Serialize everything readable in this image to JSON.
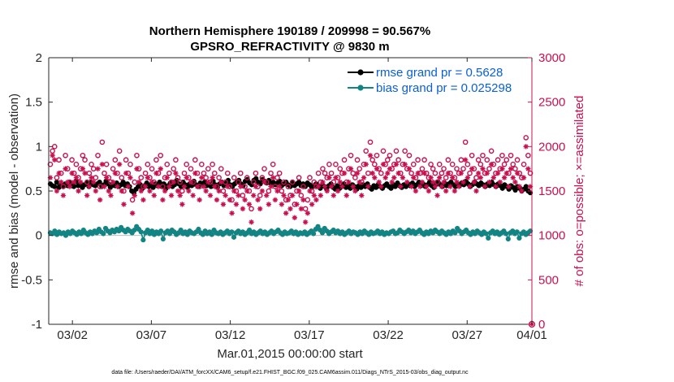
{
  "chart_data": {
    "type": "line",
    "title_line1": "Northern Hemisphere 190189 / 209998 = 90.567%",
    "title_line2": "GPSRO_REFRACTIVITY @ 9830 m",
    "xlabel": "Mar.01,2015 00:00:00 start",
    "ylabel_left": "rmse and bias (model - observation)",
    "ylabel_right": "# of obs: o=possible; ×=assimilated",
    "xlim_days": [
      0.5,
      31.1
    ],
    "ylim_left": [
      -1,
      2
    ],
    "ylim_right": [
      0,
      3000
    ],
    "x_ticks": [
      {
        "day": 2,
        "label": "03/02"
      },
      {
        "day": 7,
        "label": "03/07"
      },
      {
        "day": 12,
        "label": "03/12"
      },
      {
        "day": 17,
        "label": "03/17"
      },
      {
        "day": 22,
        "label": "03/22"
      },
      {
        "day": 27,
        "label": "03/27"
      },
      {
        "day": 32,
        "label": "04/01"
      }
    ],
    "y_ticks_left": [
      "-1",
      "-0.5",
      "0",
      "0.5",
      "1",
      "1.5",
      "2"
    ],
    "y_ticks_right": [
      "0",
      "500",
      "1000",
      "1500",
      "2000",
      "2500",
      "3000"
    ],
    "legend": [
      {
        "name": "rmse grand pr = 0.5628",
        "color": "#000000"
      },
      {
        "name": "bias grand pr = 0.025298",
        "color": "#138484"
      }
    ],
    "series": [
      {
        "name": "rmse",
        "axis": "left",
        "color": "#000000",
        "values": [
          0.58,
          0.56,
          0.55,
          0.6,
          0.54,
          0.57,
          0.55,
          0.58,
          0.56,
          0.6,
          0.57,
          0.55,
          0.61,
          0.56,
          0.58,
          0.54,
          0.57,
          0.59,
          0.55,
          0.6,
          0.57,
          0.56,
          0.58,
          0.6,
          0.55,
          0.57,
          0.61,
          0.58,
          0.54,
          0.57,
          0.56,
          0.59,
          0.55,
          0.57,
          0.6,
          0.56,
          0.58,
          0.55,
          0.5,
          0.48,
          0.52,
          0.55,
          0.57,
          0.53,
          0.56,
          0.59,
          0.55,
          0.57,
          0.54,
          0.58,
          0.56,
          0.6,
          0.55,
          0.58,
          0.53,
          0.56,
          0.59,
          0.55,
          0.57,
          0.62,
          0.58,
          0.55,
          0.6,
          0.57,
          0.54,
          0.58,
          0.56,
          0.61,
          0.57,
          0.55,
          0.59,
          0.57,
          0.6,
          0.56,
          0.58,
          0.55,
          0.61,
          0.57,
          0.54,
          0.58,
          0.6,
          0.56,
          0.59,
          0.62,
          0.57,
          0.55,
          0.58,
          0.6,
          0.62,
          0.58,
          0.56,
          0.61,
          0.63,
          0.59,
          0.57,
          0.62,
          0.64,
          0.6,
          0.58,
          0.63,
          0.61,
          0.59,
          0.62,
          0.58,
          0.6,
          0.57,
          0.59,
          0.61,
          0.56,
          0.58,
          0.6,
          0.57,
          0.55,
          0.59,
          0.56,
          0.58,
          0.6,
          0.56,
          0.58,
          0.55,
          0.59,
          0.57,
          0.54,
          0.56,
          0.58,
          0.55,
          0.53,
          0.57,
          0.55,
          0.52,
          0.56,
          0.58,
          0.54,
          0.52,
          0.56,
          0.53,
          0.55,
          0.58,
          0.54,
          0.56,
          0.53,
          0.57,
          0.55,
          0.52,
          0.56,
          0.54,
          0.57,
          0.55,
          0.58,
          0.54,
          0.52,
          0.56,
          0.54,
          0.57,
          0.55,
          0.53,
          0.56,
          0.58,
          0.55,
          0.53,
          0.57,
          0.55,
          0.59,
          0.56,
          0.54,
          0.57,
          0.55,
          0.58,
          0.56,
          0.59,
          0.55,
          0.57,
          0.6,
          0.56,
          0.58,
          0.55,
          0.57,
          0.6,
          0.56,
          0.54,
          0.58,
          0.6,
          0.57,
          0.55,
          0.59,
          0.56,
          0.58,
          0.6,
          0.57,
          0.55,
          0.58,
          0.56,
          0.59,
          0.57,
          0.61,
          0.58,
          0.55,
          0.57,
          0.6,
          0.58,
          0.56,
          0.59,
          0.57,
          0.55,
          0.58,
          0.56,
          0.6,
          0.57,
          0.55,
          0.58,
          0.56,
          0.53,
          0.57,
          0.55,
          0.52,
          0.56,
          0.54,
          0.51,
          0.55,
          0.53,
          0.5,
          0.52,
          0.55,
          0.5,
          0.48
        ]
      },
      {
        "name": "bias",
        "axis": "left",
        "color": "#138484",
        "values": [
          0.03,
          0.02,
          0.05,
          0.01,
          0.04,
          0.02,
          0.03,
          0.0,
          0.04,
          0.02,
          0.05,
          0.03,
          0.01,
          0.04,
          0.02,
          0.06,
          0.03,
          0.01,
          0.04,
          0.02,
          0.05,
          0.03,
          0.07,
          0.04,
          0.02,
          0.08,
          0.05,
          0.03,
          0.06,
          0.04,
          0.07,
          0.05,
          0.09,
          0.06,
          0.04,
          0.07,
          0.05,
          0.03,
          0.06,
          0.1,
          0.07,
          0.04,
          -0.05,
          0.03,
          0.06,
          0.02,
          0.05,
          0.01,
          0.04,
          0.02,
          0.05,
          -0.04,
          0.03,
          0.05,
          0.02,
          0.06,
          0.04,
          0.01,
          0.03,
          0.06,
          0.02,
          0.04,
          0.01,
          0.05,
          0.03,
          0.02,
          0.04,
          0.07,
          0.03,
          0.01,
          0.05,
          0.02,
          0.04,
          0.01,
          0.06,
          0.03,
          0.02,
          0.04,
          0.01,
          0.03,
          0.05,
          0.02,
          0.04,
          -0.02,
          0.03,
          0.05,
          0.02,
          0.04,
          0.01,
          0.03,
          0.06,
          0.02,
          0.04,
          0.01,
          0.03,
          0.05,
          0.02,
          0.04,
          0.01,
          0.03,
          0.05,
          0.02,
          0.04,
          0.06,
          0.03,
          0.01,
          0.04,
          0.02,
          0.03,
          0.05,
          0.02,
          0.04,
          0.01,
          0.03,
          0.02,
          0.04,
          0.01,
          0.03,
          0.05,
          0.02,
          0.07,
          0.1,
          0.06,
          0.03,
          0.08,
          0.05,
          0.02,
          0.04,
          0.06,
          0.03,
          0.05,
          0.02,
          0.04,
          0.01,
          0.03,
          0.05,
          0.02,
          0.04,
          0.03,
          0.01,
          0.04,
          0.02,
          0.05,
          0.03,
          0.01,
          0.04,
          0.02,
          0.03,
          0.05,
          0.02,
          0.04,
          0.01,
          0.03,
          0.02,
          0.04,
          0.05,
          0.02,
          0.03,
          0.06,
          0.04,
          0.02,
          0.04,
          0.06,
          0.03,
          0.05,
          0.02,
          0.04,
          0.06,
          0.03,
          0.01,
          0.04,
          0.02,
          0.05,
          0.03,
          0.06,
          0.04,
          0.02,
          0.05,
          0.03,
          0.01,
          0.04,
          0.02,
          0.05,
          0.03,
          0.08,
          0.05,
          0.02,
          0.04,
          0.06,
          0.03,
          0.01,
          0.04,
          0.02,
          0.05,
          0.03,
          0.01,
          0.04,
          0.02,
          -0.03,
          0.03,
          0.05,
          0.02,
          0.04,
          0.01,
          0.03,
          0.05,
          0.02,
          -0.04,
          0.03,
          0.05,
          0.02,
          0.04,
          -0.03,
          0.02,
          0.04,
          0.01,
          0.03,
          0.05
        ]
      },
      {
        "name": "possible",
        "axis": "right",
        "color": "#c8104f",
        "marker": "o",
        "values": [
          1800,
          1950,
          2000,
          1650,
          1850,
          1700,
          1550,
          1900,
          1750,
          1600,
          1850,
          1700,
          1800,
          1650,
          1750,
          1900,
          1850,
          1600,
          1700,
          1800,
          1750,
          1650,
          1900,
          1550,
          2050,
          1700,
          1800,
          1650,
          1600,
          1750,
          1850,
          1700,
          1950,
          1650,
          1500,
          1850,
          1700,
          1800,
          1400,
          1600,
          1900,
          1750,
          1650,
          1550,
          1700,
          1800,
          1650,
          1750,
          1600,
          1850,
          1700,
          1900,
          1550,
          1650,
          1800,
          1700,
          1600,
          1750,
          1850,
          1650,
          1600,
          1500,
          1700,
          1800,
          1650,
          1750,
          1600,
          1850,
          1700,
          1550,
          1800,
          1700,
          1650,
          1750,
          1600,
          1800,
          1700,
          1550,
          1650,
          1750,
          1500,
          1600,
          1700,
          1550,
          1400,
          1650,
          1500,
          1600,
          1700,
          1450,
          1550,
          1650,
          1500,
          1300,
          1600,
          1700,
          1550,
          1450,
          1650,
          1750,
          1600,
          1500,
          1700,
          1800,
          1550,
          1650,
          1700,
          1500,
          1600,
          1400,
          1550,
          1450,
          1600,
          1350,
          1500,
          1650,
          1450,
          1550,
          1300,
          1400,
          1650,
          1500,
          1600,
          1550,
          1700,
          1600,
          1750,
          1700,
          1650,
          1800,
          1700,
          1600,
          1800,
          1650,
          1750,
          1700,
          1850,
          1600,
          1750,
          1900,
          1700,
          1650,
          1850,
          1750,
          1600,
          1800,
          1950,
          1700,
          2050,
          1850,
          1800,
          1900,
          1750,
          1700,
          1950,
          1800,
          1850,
          1900,
          1750,
          1800,
          1950,
          1850,
          1700,
          1800,
          1950,
          1750,
          1900,
          1700,
          1800,
          1650,
          1850,
          1700,
          1750,
          1850,
          1700,
          1650,
          1800,
          1750,
          1700,
          1600,
          1800,
          1700,
          1750,
          1650,
          1850,
          1700,
          1800,
          1650,
          1750,
          1700,
          1850,
          1750,
          2050,
          1800,
          1700,
          1900,
          1750,
          1650,
          1850,
          1800,
          1900,
          1700,
          1850,
          1750,
          1950,
          1800,
          1700,
          1850,
          1750,
          1900,
          1800,
          1850,
          1700,
          1900,
          1800,
          1750,
          1850,
          1700,
          1650,
          1800,
          2100,
          1900,
          1700
        ]
      },
      {
        "name": "assimilated",
        "axis": "right",
        "color": "#c8104f",
        "marker": "x",
        "values": [
          1650,
          1900,
          1850,
          1500,
          1700,
          1600,
          1450,
          1750,
          1600,
          1550,
          1700,
          1600,
          1650,
          1500,
          1600,
          1750,
          1700,
          1450,
          1550,
          1650,
          1600,
          1500,
          1750,
          1400,
          1800,
          1550,
          1650,
          1500,
          1450,
          1600,
          1700,
          1550,
          1800,
          1500,
          1350,
          1700,
          1550,
          1650,
          1250,
          1450,
          1750,
          1600,
          1500,
          1400,
          1550,
          1650,
          1500,
          1600,
          1450,
          1700,
          1550,
          1750,
          1400,
          1500,
          1650,
          1550,
          1450,
          1600,
          1700,
          1500,
          1450,
          1350,
          1550,
          1650,
          1500,
          1600,
          1450,
          1700,
          1550,
          1400,
          1650,
          1550,
          1500,
          1600,
          1450,
          1650,
          1550,
          1400,
          1500,
          1600,
          1350,
          1450,
          1550,
          1400,
          1250,
          1500,
          1350,
          1450,
          1550,
          1300,
          1400,
          1500,
          1350,
          1150,
          1450,
          1550,
          1400,
          1300,
          1500,
          1600,
          1450,
          1350,
          1550,
          1650,
          1400,
          1500,
          1550,
          1350,
          1450,
          1250,
          1400,
          1300,
          1450,
          1200,
          1350,
          1500,
          1300,
          1400,
          1150,
          1250,
          1500,
          1350,
          1450,
          1400,
          1550,
          1450,
          1600,
          1550,
          1500,
          1650,
          1550,
          1450,
          1650,
          1500,
          1600,
          1550,
          1700,
          1450,
          1600,
          1750,
          1550,
          1500,
          1700,
          1600,
          1450,
          1650,
          1800,
          1550,
          1900,
          1700,
          1650,
          1750,
          1600,
          1550,
          1800,
          1650,
          1700,
          1750,
          1600,
          1650,
          1800,
          1700,
          1550,
          1650,
          1800,
          1600,
          1750,
          1550,
          1650,
          1500,
          1700,
          1550,
          1600,
          1700,
          1550,
          1500,
          1650,
          1600,
          1550,
          1450,
          1650,
          1550,
          1600,
          1500,
          1700,
          1550,
          1650,
          1500,
          1600,
          1550,
          1700,
          1600,
          1850,
          1650,
          1550,
          1750,
          1600,
          1500,
          1700,
          1650,
          1750,
          1550,
          1700,
          1600,
          1800,
          1650,
          1550,
          1700,
          1600,
          1750,
          1650,
          1700,
          1550,
          1750,
          1650,
          1600,
          1700,
          1550,
          1500,
          1650,
          2000,
          1750,
          1550
        ]
      }
    ]
  },
  "footnote": "data file: /Users/raeder/DAI/ATM_forcXX/CAM6_setup/f.e21.FHIST_BGC.f09_025.CAM6assim.011/Diags_NTrS_2015-03/obs_diag_output.nc"
}
